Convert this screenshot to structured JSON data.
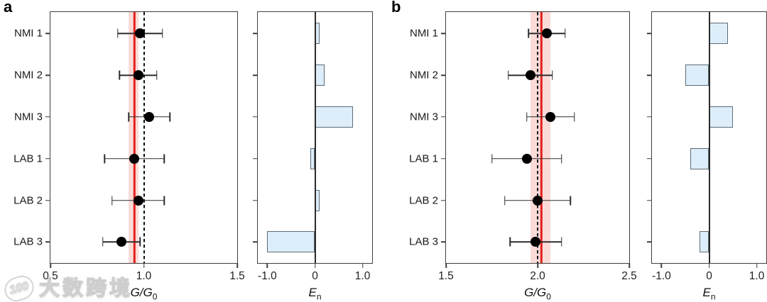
{
  "panels": [
    {
      "label": "a"
    },
    {
      "label": "b"
    }
  ],
  "watermark": {
    "logo": "100",
    "text": "大数跨境"
  },
  "colors": {
    "reference_line": "#e3201b",
    "reference_band": "#fadbd8",
    "dashed_line": "#111111",
    "bar_fill": "#ddeefa",
    "bar_border": "#5d6b75",
    "zero_line": "#2b2b2b",
    "error_bar": "#2e2e2e",
    "dot": "#000000",
    "axis": "#3f3f3f"
  },
  "chart_data": [
    {
      "panel": "a",
      "type": "scatter",
      "orientation": "horizontal",
      "title": "",
      "categories": [
        "NMI 1",
        "NMI 2",
        "NMI 3",
        "LAB 1",
        "LAB 2",
        "LAB 3"
      ],
      "values": [
        0.98,
        0.97,
        1.03,
        0.95,
        0.97,
        0.88
      ],
      "errors": [
        0.12,
        0.1,
        0.11,
        0.16,
        0.14,
        0.1
      ],
      "xlim": [
        0.5,
        1.5
      ],
      "xticks": [
        0.5,
        1.0,
        1.5
      ],
      "xtick_labels": [
        "0.5",
        "1.0",
        "1.5"
      ],
      "xlabel_base": "G/G",
      "xlabel_sub": "0",
      "reference_line": 0.95,
      "reference_band": [
        0.92,
        0.97
      ],
      "dashed_line": 1.0,
      "grid": false,
      "legend": false
    },
    {
      "panel": "a",
      "type": "bar",
      "orientation": "horizontal",
      "title": "",
      "categories": [
        "NMI 1",
        "NMI 2",
        "NMI 3",
        "LAB 1",
        "LAB 2",
        "LAB 3"
      ],
      "values": [
        0.1,
        0.2,
        0.8,
        -0.1,
        0.1,
        -1.0
      ],
      "xlim": [
        -1.2,
        1.2
      ],
      "xticks": [
        -1.0,
        0,
        1.0
      ],
      "xtick_labels": [
        "-1.0",
        "0",
        "1.0"
      ],
      "xlabel_base": "E",
      "xlabel_sub": "n",
      "zero_line": 0,
      "grid": false,
      "legend": false
    },
    {
      "panel": "b",
      "type": "scatter",
      "orientation": "horizontal",
      "title": "",
      "categories": [
        "NMI 1",
        "NMI 2",
        "NMI 3",
        "LAB 1",
        "LAB 2",
        "LAB 3"
      ],
      "values": [
        2.05,
        1.96,
        2.07,
        1.94,
        2.0,
        1.99
      ],
      "errors": [
        0.1,
        0.12,
        0.13,
        0.19,
        0.18,
        0.14
      ],
      "xlim": [
        1.5,
        2.5
      ],
      "xticks": [
        1.5,
        2.0,
        2.5
      ],
      "xtick_labels": [
        "1.5",
        "2.0",
        "2.5"
      ],
      "xlabel_base": "G/G",
      "xlabel_sub": "0",
      "reference_line": 2.02,
      "reference_band": [
        1.96,
        2.07
      ],
      "dashed_line": 2.0,
      "grid": false,
      "legend": false
    },
    {
      "panel": "b",
      "type": "bar",
      "orientation": "horizontal",
      "title": "",
      "categories": [
        "NMI 1",
        "NMI 2",
        "NMI 3",
        "LAB 1",
        "LAB 2",
        "LAB 3"
      ],
      "values": [
        0.4,
        -0.5,
        0.5,
        -0.4,
        0.0,
        -0.2
      ],
      "xlim": [
        -1.2,
        1.2
      ],
      "xticks": [
        -1.0,
        0,
        1.0
      ],
      "xtick_labels": [
        "-1.0",
        "0",
        "1.0"
      ],
      "xlabel_base": "E",
      "xlabel_sub": "n",
      "zero_line": 0,
      "grid": false,
      "legend": false
    }
  ]
}
